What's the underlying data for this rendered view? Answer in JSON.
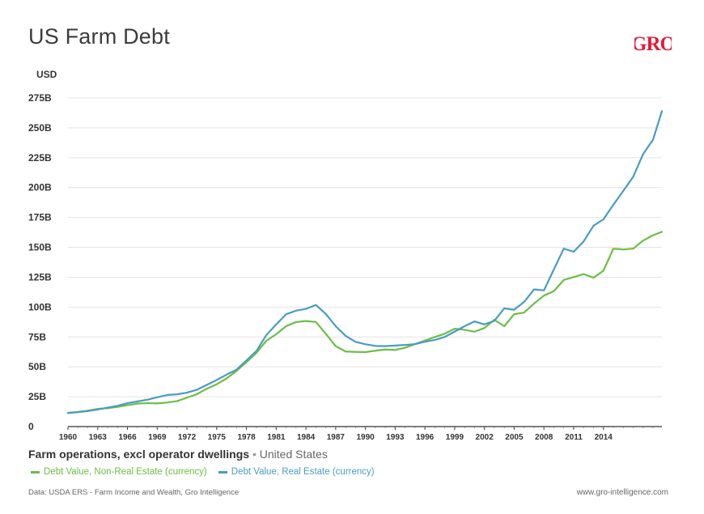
{
  "chart_data": {
    "type": "line",
    "title": "US Farm Debt",
    "logo": "GRO",
    "ylabel": "USD",
    "xlabel": "",
    "ylim": [
      0,
      275
    ],
    "xlim": [
      1960,
      2019
    ],
    "y_ticks": [
      0,
      25,
      50,
      75,
      100,
      125,
      150,
      175,
      200,
      225,
      250,
      275
    ],
    "y_tick_labels": [
      "0",
      "25B",
      "50B",
      "75B",
      "100B",
      "125B",
      "150B",
      "175B",
      "200B",
      "225B",
      "250B",
      "275B"
    ],
    "x_ticks": [
      1960,
      1963,
      1966,
      1969,
      1972,
      1975,
      1978,
      1981,
      1984,
      1987,
      1990,
      1993,
      1996,
      1999,
      2002,
      2005,
      2008,
      2011,
      2014
    ],
    "x_tick_labels": [
      "1960",
      "1963",
      "1966",
      "1969",
      "1972",
      "1975",
      "1978",
      "1981",
      "1984",
      "1987",
      "1990",
      "1993",
      "1996",
      "1999",
      "2002",
      "2005",
      "2008",
      "2011",
      "2014"
    ],
    "x": [
      1960,
      1961,
      1962,
      1963,
      1964,
      1965,
      1966,
      1967,
      1968,
      1969,
      1970,
      1971,
      1972,
      1973,
      1974,
      1975,
      1976,
      1977,
      1978,
      1979,
      1980,
      1981,
      1982,
      1983,
      1984,
      1985,
      1986,
      1987,
      1988,
      1989,
      1990,
      1991,
      1992,
      1993,
      1994,
      1995,
      1996,
      1997,
      1998,
      1999,
      2000,
      2001,
      2002,
      2003,
      2004,
      2005,
      2006,
      2007,
      2008,
      2009,
      2010,
      2011,
      2012,
      2013,
      2014,
      2015,
      2016,
      2017,
      2018,
      2019
    ],
    "series": [
      {
        "name": "Debt Value, Non-Real Estate (currency)",
        "color": "#6cbe45",
        "values": [
          11.5,
          12.3,
          13.3,
          14.8,
          15.4,
          16.5,
          17.9,
          19.2,
          19.6,
          19.4,
          20.1,
          21.3,
          24.2,
          27.1,
          31.7,
          35.4,
          40.3,
          46.6,
          53.9,
          61.6,
          71.8,
          77.3,
          84.0,
          87.5,
          88.3,
          87.6,
          77.7,
          67.3,
          62.8,
          62.5,
          62.3,
          63.5,
          64.5,
          64.1,
          66.0,
          69.0,
          72.0,
          75.0,
          77.7,
          81.9,
          81.0,
          79.4,
          82.5,
          89.3,
          84.0,
          94.1,
          95.4,
          102.9,
          109.6,
          113.3,
          122.7,
          125.1,
          127.6,
          124.6,
          130.4,
          148.9,
          148.2,
          148.9,
          155.6,
          160.1
        ]
      },
      {
        "name": "Debt Value, Real Estate (currency)",
        "color": "#4a9cc2",
        "values": [
          11.3,
          12.1,
          13.0,
          14.3,
          15.9,
          17.4,
          19.6,
          21.0,
          22.5,
          24.5,
          26.4,
          27.0,
          28.4,
          30.8,
          34.9,
          39.0,
          43.5,
          47.6,
          55.3,
          63.2,
          76.5,
          85.5,
          94.0,
          97.0,
          98.5,
          101.8,
          94.3,
          84.0,
          75.9,
          70.9,
          68.9,
          67.5,
          67.3,
          67.8,
          68.3,
          69.0,
          71.0,
          72.5,
          75.0,
          79.5,
          84.0,
          88.0,
          85.5,
          88.5,
          98.9,
          97.8,
          104.3,
          114.8,
          113.9,
          131.5,
          148.9,
          146.3,
          154.9,
          168.1,
          173.4,
          185.6,
          197.2,
          209.0,
          228.0,
          240.0
        ]
      }
    ],
    "x_after_last": 2019.9,
    "last_values": [
      163.0,
      264.0
    ]
  },
  "subtitle": {
    "main": "Farm operations, excl operator dwellings",
    "separator": "•",
    "location": "United States"
  },
  "legend": [
    {
      "label": "Debt Value, Non-Real Estate (currency)",
      "color": "#6cbe45"
    },
    {
      "label": "Debt Value, Real Estate (currency)",
      "color": "#4a9cc2"
    }
  ],
  "footer": {
    "source": "Data: USDA ERS - Farm Income and Wealth, Gro Intelligence",
    "website": "www.gro-intelligence.com"
  }
}
